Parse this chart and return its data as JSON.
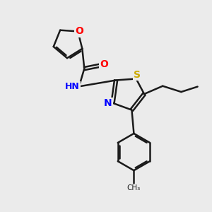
{
  "background_color": "#ebebeb",
  "bond_color": "#1a1a1a",
  "atom_colors": {
    "O": "#ff0000",
    "N": "#0000ff",
    "S": "#ccaa00",
    "C": "#1a1a1a",
    "H": "#0000ff"
  },
  "figsize": [
    3.0,
    3.0
  ],
  "dpi": 100
}
